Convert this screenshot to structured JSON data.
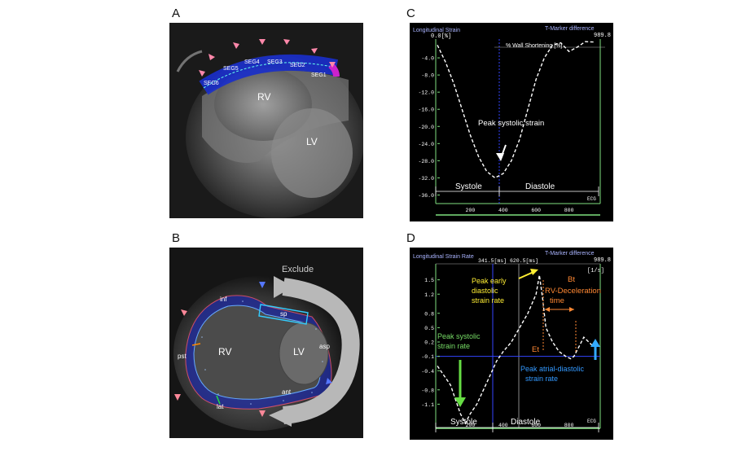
{
  "panels": {
    "A": {
      "letter": "A",
      "segments": [
        "SEG6",
        "SEG5",
        "SEG4",
        "SEG3",
        "SEG2",
        "SEG1"
      ],
      "labels": {
        "rv": "RV",
        "lv": "LV"
      }
    },
    "B": {
      "letter": "B",
      "exclude": "Exclude",
      "labels": {
        "rv": "RV",
        "lv": "LV"
      },
      "segments": [
        "inf",
        "sp",
        "asp",
        "ant",
        "lat",
        "pst"
      ]
    },
    "C": {
      "letter": "C",
      "header_left": "Longitudinal Strain",
      "header_right": "T-Marker difference",
      "unit_top": "0.0[%]",
      "header_value": "989.8",
      "legend": "% Wall Shortening [%]",
      "annotation": "Peak systolic strain",
      "phase_systole": "Systole",
      "phase_diastole": "Diastole",
      "ecg": "ECG"
    },
    "D": {
      "letter": "D",
      "header_left": "Longitudinal Strain Rate",
      "header_mid": "341.5[ms]  620.5[ms]",
      "header_right": "T-Marker difference",
      "header_value": "989.8",
      "unit": "[1/s]",
      "ann_peak_early": "Peak early diastolic strain rate",
      "ann_rv_decel": "RV-Deceleration time",
      "ann_bt": "Bt",
      "ann_et": "Et",
      "ann_peak_systolic": "Peak systolic strain rate",
      "ann_peak_atrial": "Peak atrial-diastolic strain rate",
      "phase_systole": "Systole",
      "phase_diastole": "Diastole",
      "ecg": "ECG"
    }
  },
  "chart_data": [
    {
      "type": "line",
      "panel": "C",
      "x": [
        0,
        50,
        100,
        150,
        200,
        250,
        300,
        350,
        400,
        450,
        500,
        550,
        600,
        650,
        700,
        750,
        800,
        850,
        900,
        950
      ],
      "values": [
        -1.0,
        -5.0,
        -10.0,
        -16.0,
        -22.0,
        -27.0,
        -30.5,
        -32.0,
        -31.0,
        -28.0,
        -23.0,
        -16.0,
        -9.0,
        -4.0,
        -1.0,
        -0.5,
        -2.5,
        -1.5,
        -0.2,
        -0.3
      ],
      "yticks": [
        "-4.0",
        "-8.0",
        "-12.0",
        "-16.0",
        "-20.0",
        "-24.0",
        "-28.0",
        "-32.0",
        "-36.0"
      ],
      "xticks": [
        "200",
        "400",
        "600",
        "800"
      ],
      "ylim": [
        -38,
        0
      ],
      "xlim": [
        0,
        980
      ]
    },
    {
      "type": "line",
      "panel": "D",
      "x": [
        0,
        40,
        80,
        110,
        140,
        170,
        200,
        240,
        280,
        320,
        360,
        400,
        450,
        500,
        550,
        600,
        620,
        640,
        660,
        700,
        740,
        780,
        810,
        830,
        860,
        890,
        920,
        950
      ],
      "values": [
        -0.3,
        -0.5,
        -0.7,
        -1.0,
        -1.3,
        -1.5,
        -1.3,
        -1.1,
        -0.8,
        -0.5,
        -0.2,
        0.0,
        0.2,
        0.5,
        0.8,
        1.2,
        1.6,
        1.1,
        0.5,
        0.2,
        0.0,
        -0.1,
        -0.15,
        -0.1,
        0.1,
        0.3,
        0.2,
        0.1
      ],
      "yticks": [
        "1.5",
        "1.2",
        "0.8",
        "0.5",
        "0.2",
        "-0.1",
        "-0.4",
        "-0.8",
        "-1.1"
      ],
      "xticks": [
        "200",
        "400",
        "600",
        "800"
      ],
      "ylim": [
        -1.4,
        1.8
      ],
      "xlim": [
        0,
        980
      ]
    }
  ]
}
